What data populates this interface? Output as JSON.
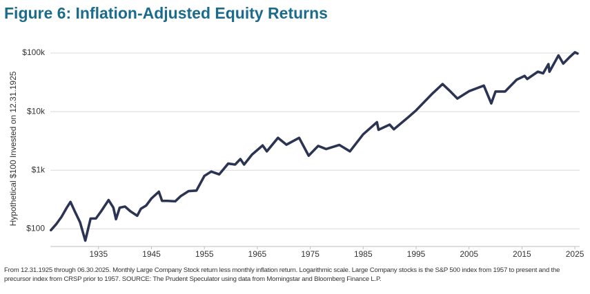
{
  "chart_data": {
    "type": "line",
    "title": "Figure 6: Inflation-Adjusted Equity Returns",
    "ylabel": "Hypothetical $100 Invested on 12.31.1925",
    "note": "From 12.31.1925 through 06.30.2025. Monthly Large Company Stock return less monthly inflation return. Logarithmic scale. Large Company stocks is the S&P 500 index from 1957 to present and the precursor index from CRSP prior to 1957.  SOURCE: The Prudent Speculator using data from Morningstar and Bloomberg Finance L.P.",
    "yscale": "log",
    "grid": true,
    "color": "#2b3452",
    "xlim": [
      1925.9,
      2025.9
    ],
    "xticks": [
      1935,
      1945,
      1955,
      1965,
      1975,
      1985,
      1995,
      2005,
      2015,
      2025
    ],
    "ylim": [
      50,
      150000
    ],
    "yticks": [
      {
        "value": 100,
        "label": "$100"
      },
      {
        "value": 1000,
        "label": "$1k"
      },
      {
        "value": 10000,
        "label": "$10k"
      },
      {
        "value": 100000,
        "label": "$100k"
      }
    ],
    "x": [
      1926.0,
      1927.0,
      1928.0,
      1929.0,
      1929.7,
      1930.5,
      1931.5,
      1932.5,
      1933.5,
      1934.5,
      1935.5,
      1936.9,
      1937.8,
      1938.3,
      1939.0,
      1940.0,
      1941.0,
      1942.3,
      1943.0,
      1944.0,
      1945.0,
      1946.4,
      1947.0,
      1948.0,
      1949.5,
      1950.5,
      1952.0,
      1953.5,
      1955.0,
      1956.3,
      1957.8,
      1959.5,
      1960.8,
      1961.8,
      1962.5,
      1964.0,
      1966.0,
      1966.8,
      1968.9,
      1970.5,
      1972.9,
      1974.7,
      1976.5,
      1978.0,
      1980.5,
      1982.5,
      1985.0,
      1987.6,
      1987.9,
      1990.0,
      1990.8,
      1993.5,
      1995.0,
      1998.0,
      2000.0,
      2001.5,
      2002.8,
      2005.0,
      2007.8,
      2009.2,
      2010.0,
      2011.8,
      2014.0,
      2015.5,
      2016.0,
      2018.0,
      2019.0,
      2020.0,
      2020.2,
      2021.9,
      2022.8,
      2024.0,
      2025.0,
      2025.5
    ],
    "values": [
      95,
      120,
      160,
      230,
      288,
      200,
      130,
      63,
      150,
      150,
      200,
      310,
      230,
      146,
      230,
      240,
      200,
      167,
      220,
      250,
      330,
      430,
      300,
      300,
      295,
      360,
      440,
      450,
      800,
      950,
      850,
      1300,
      1250,
      1550,
      1250,
      1850,
      2650,
      2100,
      3570,
      2730,
      3570,
      1770,
      2600,
      2300,
      2700,
      2100,
      4100,
      6600,
      4900,
      6000,
      5000,
      8000,
      10500,
      20000,
      29500,
      22000,
      16700,
      22300,
      27800,
      13800,
      22000,
      22000,
      35000,
      40700,
      36000,
      48000,
      45000,
      64700,
      48000,
      91000,
      66000,
      85000,
      103000,
      98000
    ]
  }
}
